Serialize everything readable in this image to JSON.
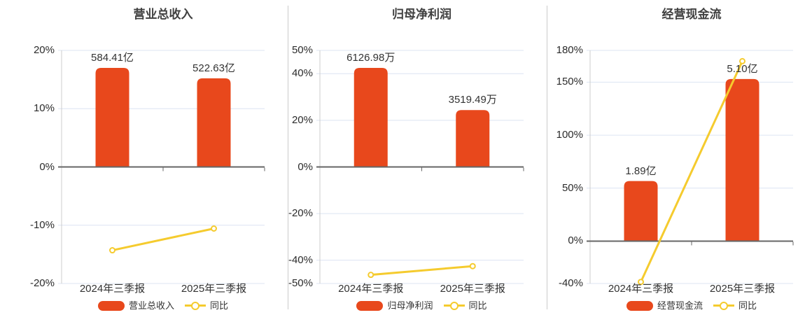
{
  "colors": {
    "bar": "#e8481c",
    "line": "#f5cb2e",
    "grid": "#dce4f2",
    "zero_axis": "#666666",
    "axis": "#cccccc",
    "divider": "#cccccc",
    "title_text": "#404040",
    "tick_text": "#2b2b2b",
    "label_text": "#333333"
  },
  "chart_data": [
    {
      "type": "bar",
      "title": "营业总收入",
      "categories": [
        "2024年三季报",
        "2025年三季报"
      ],
      "series": [
        {
          "name": "营业总收入",
          "type": "bar",
          "unit": "亿",
          "values": [
            584.41,
            522.63
          ],
          "value_labels": [
            "584.41亿",
            "522.63亿"
          ]
        },
        {
          "name": "同比",
          "type": "line",
          "unit": "%",
          "values": [
            -14.3,
            -10.57
          ]
        }
      ],
      "ylim": [
        -20,
        20
      ],
      "ytick_values": [
        20,
        10,
        0,
        -10,
        -20
      ],
      "yticks": [
        "20%",
        "10%",
        "0%",
        "-10%",
        "-20%"
      ],
      "legend": [
        "营业总收入",
        "同比"
      ],
      "grid": "on",
      "legend_position": "bottom"
    },
    {
      "type": "bar",
      "title": "归母净利润",
      "categories": [
        "2024年三季报",
        "2025年三季报"
      ],
      "series": [
        {
          "name": "归母净利润",
          "type": "bar",
          "unit": "万",
          "values": [
            6126.98,
            3519.49
          ],
          "value_labels": [
            "6126.98万",
            "3519.49万"
          ]
        },
        {
          "name": "同比",
          "type": "line",
          "unit": "%",
          "values": [
            -46.3,
            -42.56
          ]
        }
      ],
      "ylim": [
        -50,
        50
      ],
      "ytick_values": [
        50,
        40,
        20,
        0,
        -20,
        -40,
        -50
      ],
      "yticks": [
        "50%",
        "40%",
        "20%",
        "0%",
        "-20%",
        "-40%",
        "-50%"
      ],
      "legend": [
        "归母净利润",
        "同比"
      ],
      "grid": "on",
      "legend_position": "bottom"
    },
    {
      "type": "bar",
      "title": "经营现金流",
      "categories": [
        "2024年三季报",
        "2025年三季报"
      ],
      "series": [
        {
          "name": "经营现金流",
          "type": "bar",
          "unit": "亿",
          "values": [
            1.89,
            5.1
          ],
          "value_labels": [
            "1.89亿",
            "5.10亿"
          ]
        },
        {
          "name": "同比",
          "type": "line",
          "unit": "%",
          "values": [
            -38.5,
            169.84
          ]
        }
      ],
      "ylim": [
        -40,
        180
      ],
      "ytick_values": [
        180,
        150,
        100,
        50,
        0,
        -40
      ],
      "yticks": [
        "180%",
        "150%",
        "100%",
        "50%",
        "0%",
        "-40%"
      ],
      "legend": [
        "经营现金流",
        "同比"
      ],
      "grid": "on",
      "legend_position": "bottom"
    }
  ]
}
